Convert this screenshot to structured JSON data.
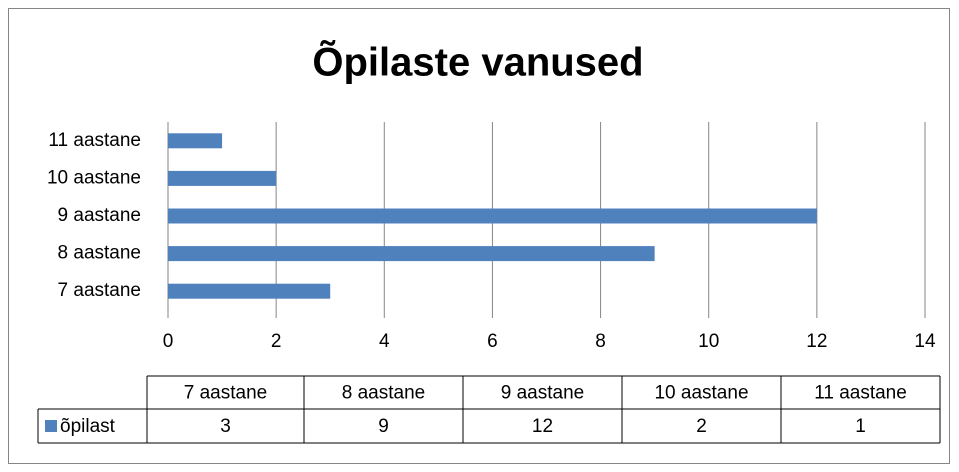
{
  "chart_data": {
    "type": "barh",
    "title": "Õpilaste vanused",
    "categories": [
      "7 aastane",
      "8 aastane",
      "9 aastane",
      "10 aastane",
      "11 aastane"
    ],
    "series": [
      {
        "name": "õpilast",
        "color": "#4f81bd",
        "values": [
          3,
          9,
          12,
          2,
          1
        ]
      }
    ],
    "xlim": [
      0,
      14
    ],
    "xticks": [
      0,
      2,
      4,
      6,
      8,
      10,
      12,
      14
    ],
    "grid": true,
    "data_table": true
  }
}
